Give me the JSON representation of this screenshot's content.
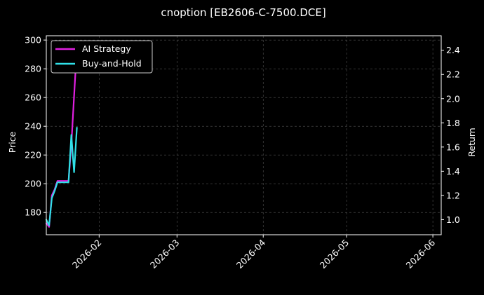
{
  "chart_data": {
    "type": "line",
    "title": "cnoption [EB2606-C-7500.DCE]",
    "y_left_label": "Price",
    "y_right_label": "Return",
    "y_left_ticks": [
      180,
      200,
      220,
      240,
      260,
      280,
      300
    ],
    "y_left_range": [
      164.5,
      303
    ],
    "y_right_ticks": [
      1.0,
      1.2,
      1.4,
      1.6,
      1.8,
      2.0,
      2.2,
      2.4
    ],
    "y_right_range": [
      0.875,
      2.52
    ],
    "x_ticks": [
      "2026-02",
      "2026-03",
      "2026-04",
      "2026-05",
      "2026-06"
    ],
    "x_range": [
      "2026-01-13",
      "2026-06-04"
    ],
    "grid": true,
    "legend_position": "top-left",
    "series": [
      {
        "name": "AI Strategy",
        "axis": "right",
        "color": "#e020e0",
        "points": [
          [
            "2026-01-13",
            0.97
          ],
          [
            "2026-01-14",
            0.94
          ],
          [
            "2026-01-15",
            1.2
          ],
          [
            "2026-01-16",
            1.25
          ],
          [
            "2026-01-17",
            1.32
          ],
          [
            "2026-01-21",
            1.32
          ],
          [
            "2026-01-22",
            1.62
          ],
          [
            "2026-01-23",
            2.02
          ],
          [
            "2026-01-24",
            2.42
          ]
        ]
      },
      {
        "name": "Buy-and-Hold",
        "axis": "left",
        "color": "#30e0e8",
        "points": [
          [
            "2026-01-13",
            175
          ],
          [
            "2026-01-14",
            171
          ],
          [
            "2026-01-15",
            190
          ],
          [
            "2026-01-16",
            195
          ],
          [
            "2026-01-17",
            201
          ],
          [
            "2026-01-21",
            201
          ],
          [
            "2026-01-22",
            234
          ],
          [
            "2026-01-23",
            208
          ],
          [
            "2026-01-24",
            239
          ]
        ]
      }
    ]
  }
}
